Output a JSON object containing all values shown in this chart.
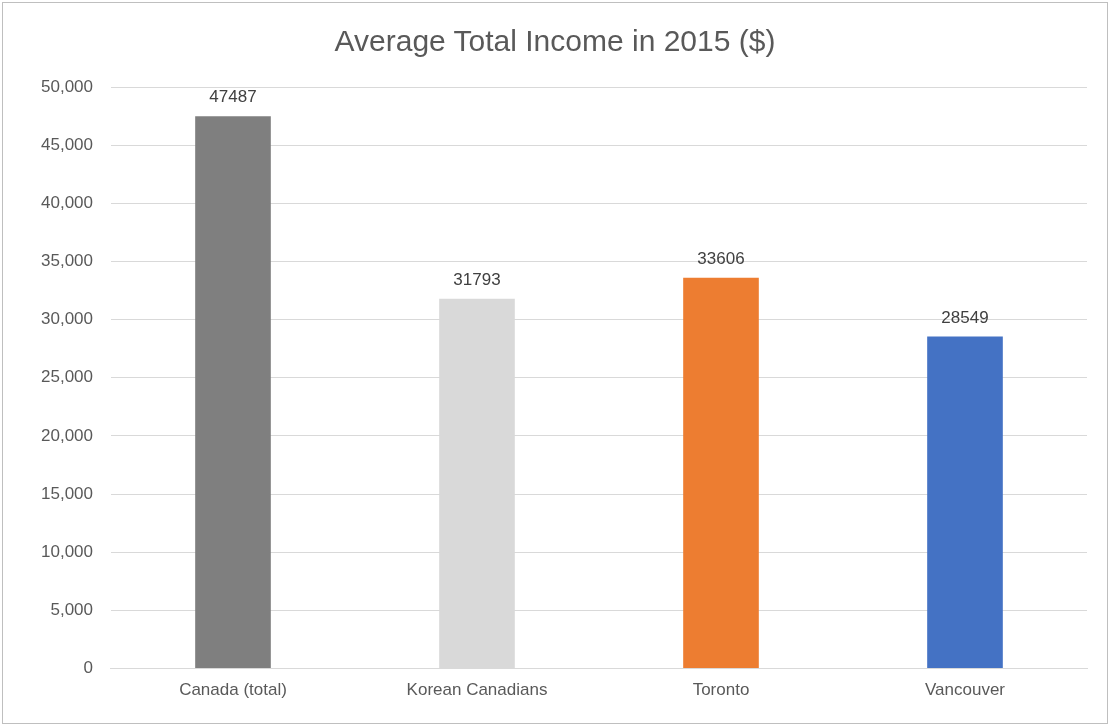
{
  "chart_data": {
    "type": "bar",
    "title": "Average Total Income in 2015 ($)",
    "categories": [
      "Canada (total)",
      "Korean Canadians",
      "Toronto",
      "Vancouver"
    ],
    "values": [
      47487,
      31793,
      33606,
      28549
    ],
    "colors": [
      "#7f7f7f",
      "#d9d9d9",
      "#ed7d31",
      "#4472c4"
    ],
    "ylim": [
      0,
      50000
    ],
    "yticks": [
      {
        "value": 0,
        "label": "0"
      },
      {
        "value": 5000,
        "label": "5,000"
      },
      {
        "value": 10000,
        "label": "10,000"
      },
      {
        "value": 15000,
        "label": "15,000"
      },
      {
        "value": 20000,
        "label": "20,000"
      },
      {
        "value": 25000,
        "label": "25,000"
      },
      {
        "value": 30000,
        "label": "30,000"
      },
      {
        "value": 35000,
        "label": "35,000"
      },
      {
        "value": 40000,
        "label": "40,000"
      },
      {
        "value": 45000,
        "label": "45,000"
      },
      {
        "value": 50000,
        "label": "50,000"
      }
    ],
    "grid": "y",
    "data_labels": true,
    "legend": false
  }
}
